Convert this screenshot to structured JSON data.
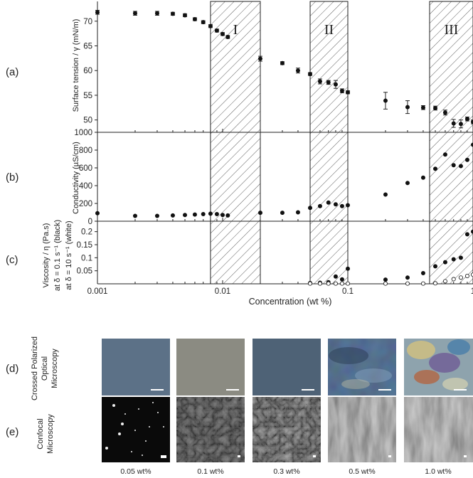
{
  "panel_letters": [
    "(a)",
    "(b)",
    "(c)",
    "(d)",
    "(e)"
  ],
  "regions": [
    {
      "label": "I",
      "x_range": [
        0.008,
        0.02
      ]
    },
    {
      "label": "II",
      "x_range": [
        0.05,
        0.1
      ]
    },
    {
      "label": "III",
      "x_range": [
        0.45,
        1.0
      ]
    }
  ],
  "chart_data": [
    {
      "type": "scatter",
      "panel": "(a)",
      "ylabel": "Surface tension / γ (mN/m)",
      "xscale": "log",
      "xlim": [
        0.001,
        1.0
      ],
      "ylim": [
        47.5,
        74
      ],
      "yticks": [
        50,
        55,
        60,
        65,
        70
      ],
      "series": [
        {
          "marker": "filled",
          "x": [
            0.001,
            0.002,
            0.003,
            0.004,
            0.005,
            0.006,
            0.007,
            0.008,
            0.009,
            0.01,
            0.011,
            0.02,
            0.03,
            0.04,
            0.05,
            0.06,
            0.07,
            0.08,
            0.09,
            0.1,
            0.2,
            0.3,
            0.4,
            0.5,
            0.6,
            0.7,
            0.8,
            0.9,
            1.0
          ],
          "y": [
            71.8,
            71.6,
            71.6,
            71.5,
            71.2,
            70.4,
            69.8,
            69.0,
            68.1,
            67.4,
            66.8,
            62.4,
            61.5,
            60.0,
            59.3,
            57.8,
            57.6,
            57.2,
            55.9,
            55.6,
            53.9,
            52.6,
            52.5,
            52.4,
            51.5,
            49.3,
            49.2,
            50.2,
            49.6
          ],
          "err": [
            0.4,
            0.4,
            0.4,
            0.3,
            0.3,
            0.3,
            0.3,
            0.3,
            0.3,
            0.3,
            0.3,
            0.5,
            0.3,
            0.5,
            0.3,
            0.5,
            0.4,
            0.8,
            0.4,
            0.3,
            1.7,
            1.3,
            0.4,
            0.4,
            0.5,
            0.8,
            0.8,
            0.4,
            0.4
          ]
        }
      ]
    },
    {
      "type": "scatter",
      "panel": "(b)",
      "ylabel": "Conductivity (µS/cm)",
      "xscale": "log",
      "xlim": [
        0.001,
        1.0
      ],
      "ylim": [
        0,
        1000
      ],
      "yticks": [
        0,
        200,
        400,
        600,
        800,
        1000
      ],
      "series": [
        {
          "marker": "filled",
          "x": [
            0.001,
            0.002,
            0.003,
            0.004,
            0.005,
            0.006,
            0.007,
            0.008,
            0.009,
            0.01,
            0.011,
            0.02,
            0.03,
            0.04,
            0.05,
            0.06,
            0.07,
            0.08,
            0.09,
            0.1,
            0.2,
            0.3,
            0.4,
            0.5,
            0.6,
            0.7,
            0.8,
            0.9,
            1.0
          ],
          "y": [
            90,
            60,
            60,
            65,
            70,
            75,
            80,
            85,
            80,
            70,
            65,
            95,
            95,
            100,
            150,
            170,
            210,
            190,
            170,
            180,
            300,
            430,
            490,
            590,
            750,
            630,
            620,
            690,
            860
          ]
        }
      ]
    },
    {
      "type": "scatter",
      "panel": "(c)",
      "ylabel_lines": [
        "Viscosity / η (Pa.s)",
        "at δ = 0.1 s⁻¹ (black)",
        "at δ = 10 s⁻¹ (white)"
      ],
      "xlabel": "Concentration (wt %)",
      "xscale": "log",
      "xlim": [
        0.001,
        1.0
      ],
      "ylim": [
        0,
        0.24
      ],
      "yticks": [
        0.05,
        0.1,
        0.15,
        0.2
      ],
      "xticks": [
        0.001,
        0.01,
        0.1,
        1
      ],
      "xtick_labels": [
        "0.001",
        "0.01",
        "0.1",
        "1"
      ],
      "series": [
        {
          "marker": "filled",
          "x": [
            0.05,
            0.06,
            0.07,
            0.08,
            0.09,
            0.1,
            0.2,
            0.3,
            0.4,
            0.5,
            0.6,
            0.7,
            0.8,
            0.9,
            1.0
          ],
          "y": [
            0.003,
            0.004,
            0.006,
            0.028,
            0.017,
            0.058,
            0.016,
            0.024,
            0.041,
            0.067,
            0.083,
            0.094,
            0.1,
            0.19,
            0.2
          ]
        },
        {
          "marker": "open",
          "x": [
            0.05,
            0.06,
            0.07,
            0.08,
            0.09,
            0.1,
            0.2,
            0.3,
            0.4,
            0.5,
            0.6,
            0.7,
            0.8,
            0.9,
            1.0
          ],
          "y": [
            0.001,
            0.001,
            0.001,
            0.001,
            0.001,
            0.001,
            0.001,
            0.001,
            0.001,
            0.002,
            0.01,
            0.018,
            0.024,
            0.03,
            0.035
          ]
        }
      ]
    }
  ],
  "micrograph_rows": [
    {
      "panel": "(d)",
      "title_lines": [
        "Crossed Polarized",
        "Optical",
        "Microscopy"
      ]
    },
    {
      "panel": "(e)",
      "title_lines": [
        "Confocal",
        "Microscopy"
      ]
    }
  ],
  "micrograph_labels": [
    "0.05 wt%",
    "0.1 wt%",
    "0.3 wt%",
    "0.5 wt%",
    "1.0 wt%"
  ],
  "colors": {
    "pom_005": "#5c7187",
    "pom_01": "#8b8b82",
    "pom_03": "#4e6276",
    "pom_05": "#5b7a9c",
    "pom_10": "#8ea3ad",
    "confocal_bg": "#0a0a0a"
  }
}
